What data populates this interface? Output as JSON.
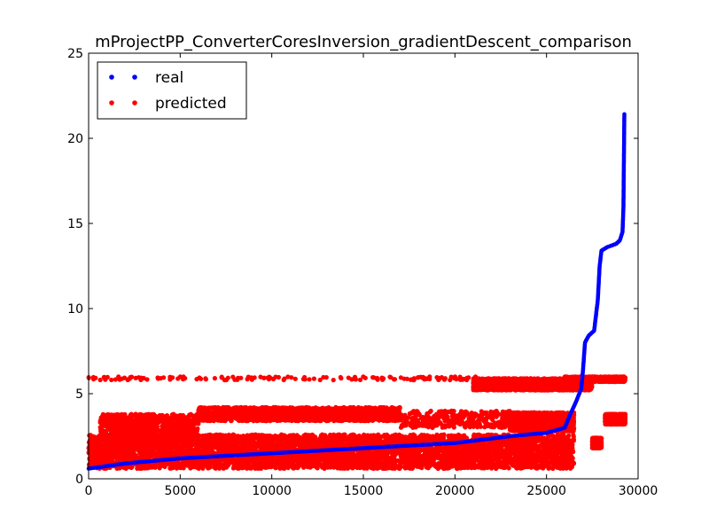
{
  "chart_data": {
    "type": "scatter",
    "title": "mProjectPP_ConverterCoresInversion_gradientDescent_comparison",
    "xlabel": "",
    "ylabel": "",
    "xlim": [
      0,
      30000
    ],
    "ylim": [
      0,
      25
    ],
    "x_ticks": [
      0,
      5000,
      10000,
      15000,
      20000,
      25000,
      30000
    ],
    "y_ticks": [
      0,
      5,
      10,
      15,
      20,
      25
    ],
    "grid": false,
    "legend_position": "top-left",
    "n_points": 29300,
    "series": [
      {
        "name": "real",
        "color": "#0000ff",
        "marker": "dot",
        "curve": [
          [
            0,
            0.6
          ],
          [
            2000,
            0.9
          ],
          [
            5000,
            1.2
          ],
          [
            10000,
            1.5
          ],
          [
            15000,
            1.8
          ],
          [
            20000,
            2.1
          ],
          [
            23000,
            2.5
          ],
          [
            25000,
            2.7
          ],
          [
            26000,
            3.0
          ],
          [
            26300,
            3.8
          ],
          [
            26600,
            4.5
          ],
          [
            26900,
            5.3
          ],
          [
            27000,
            6.5
          ],
          [
            27100,
            8.0
          ],
          [
            27300,
            8.4
          ],
          [
            27600,
            8.7
          ],
          [
            27800,
            10.5
          ],
          [
            27900,
            12.5
          ],
          [
            28000,
            13.4
          ],
          [
            28300,
            13.6
          ],
          [
            28800,
            13.8
          ],
          [
            29000,
            14.0
          ],
          [
            29150,
            14.5
          ],
          [
            29200,
            16.0
          ],
          [
            29250,
            21.5
          ]
        ]
      },
      {
        "name": "predicted",
        "color": "#ff0000",
        "marker": "dot",
        "bands": [
          {
            "x": [
              0,
              26500
            ],
            "y": [
              0.6,
              2.6
            ],
            "density": "very high"
          },
          {
            "x": [
              6000,
              17000
            ],
            "y": [
              3.4,
              4.2
            ],
            "density": "high"
          },
          {
            "x": [
              600,
              6000
            ],
            "y": [
              2.6,
              3.8
            ],
            "density": "medium"
          },
          {
            "x": [
              17000,
              23000
            ],
            "y": [
              3.0,
              4.0
            ],
            "density": "low"
          },
          {
            "x": [
              21000,
              27500
            ],
            "y": [
              5.2,
              5.9
            ],
            "density": "high"
          },
          {
            "x": [
              23000,
              26500
            ],
            "y": [
              2.8,
              3.9
            ],
            "density": "high"
          },
          {
            "x": [
              0,
              22000
            ],
            "y": [
              5.8,
              6.0
            ],
            "density": "sparse"
          },
          {
            "x": [
              27500,
              28000
            ],
            "y": [
              1.8,
              2.4
            ],
            "density": "medium"
          },
          {
            "x": [
              28200,
              29300
            ],
            "y": [
              3.2,
              3.8
            ],
            "density": "high"
          },
          {
            "x": [
              26000,
              29300
            ],
            "y": [
              5.7,
              6.0
            ],
            "density": "medium"
          }
        ]
      }
    ]
  }
}
